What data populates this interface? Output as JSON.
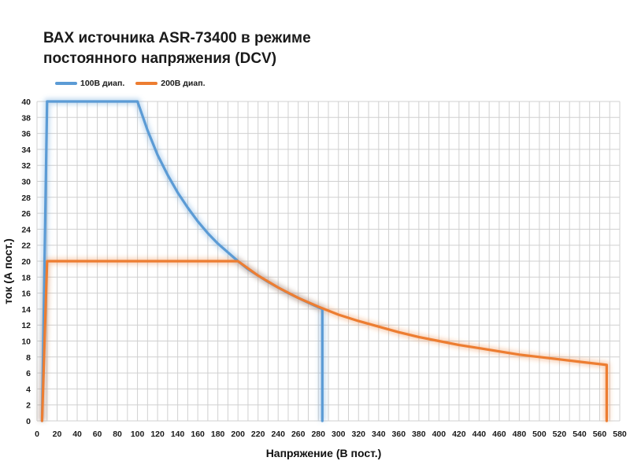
{
  "chart_data": {
    "type": "line",
    "title_line1": "ВАХ источника ASR-73400 в режиме",
    "title_line2": "постоянного напряжения (DCV)",
    "xlabel": "Напряжение (В пост.)",
    "ylabel": "ток (А пост.)",
    "xlim": [
      0,
      580
    ],
    "ylim": [
      0,
      40
    ],
    "x_ticks": [
      0,
      10,
      20,
      30,
      40,
      50,
      60,
      70,
      80,
      90,
      100,
      110,
      120,
      130,
      140,
      150,
      160,
      170,
      180,
      190,
      200,
      210,
      220,
      230,
      240,
      250,
      260,
      270,
      280,
      290,
      300,
      310,
      320,
      330,
      340,
      350,
      360,
      370,
      380,
      390,
      400,
      410,
      420,
      430,
      440,
      450,
      460,
      470,
      480,
      490,
      500,
      510,
      520,
      530,
      540,
      550,
      560,
      570,
      580
    ],
    "x_tick_labels": [
      "0",
      "20",
      "40",
      "60",
      "80",
      "100",
      "120",
      "140",
      "160",
      "180",
      "200",
      "220",
      "240",
      "260",
      "280",
      "300",
      "320",
      "340",
      "360",
      "380",
      "400",
      "420",
      "440",
      "460",
      "480",
      "500",
      "520",
      "540",
      "560",
      "580"
    ],
    "y_ticks": [
      0,
      2,
      4,
      6,
      8,
      10,
      12,
      14,
      16,
      18,
      20,
      22,
      24,
      26,
      28,
      30,
      32,
      34,
      36,
      38,
      40
    ],
    "grid": true,
    "legend_position": "top-left",
    "series": [
      {
        "name": "100В диап.",
        "color": "#5b9bd5",
        "points": [
          [
            5,
            0
          ],
          [
            10,
            40
          ],
          [
            100,
            40
          ],
          [
            110,
            36.4
          ],
          [
            120,
            33.3
          ],
          [
            130,
            30.8
          ],
          [
            140,
            28.6
          ],
          [
            150,
            26.7
          ],
          [
            160,
            25
          ],
          [
            170,
            23.5
          ],
          [
            180,
            22.2
          ],
          [
            190,
            21.1
          ],
          [
            200,
            20
          ],
          [
            210,
            19
          ],
          [
            220,
            18.2
          ],
          [
            230,
            17.4
          ],
          [
            240,
            16.7
          ],
          [
            250,
            16
          ],
          [
            260,
            15.4
          ],
          [
            270,
            14.8
          ],
          [
            284,
            14
          ],
          [
            284,
            0
          ]
        ]
      },
      {
        "name": "200В диап.",
        "color": "#ed7d31",
        "points": [
          [
            5,
            0
          ],
          [
            10,
            20
          ],
          [
            200,
            20
          ],
          [
            220,
            18.2
          ],
          [
            240,
            16.7
          ],
          [
            260,
            15.4
          ],
          [
            280,
            14.3
          ],
          [
            300,
            13.3
          ],
          [
            320,
            12.5
          ],
          [
            340,
            11.8
          ],
          [
            360,
            11.1
          ],
          [
            380,
            10.5
          ],
          [
            400,
            10
          ],
          [
            420,
            9.5
          ],
          [
            440,
            9.1
          ],
          [
            460,
            8.7
          ],
          [
            480,
            8.3
          ],
          [
            500,
            8
          ],
          [
            520,
            7.7
          ],
          [
            540,
            7.4
          ],
          [
            567,
            7
          ],
          [
            567,
            0
          ]
        ]
      }
    ]
  }
}
